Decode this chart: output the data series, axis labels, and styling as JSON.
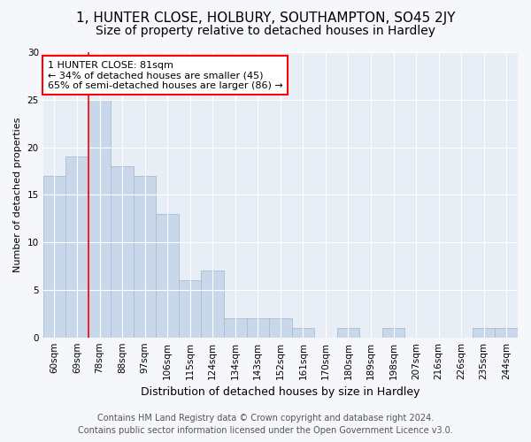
{
  "title1": "1, HUNTER CLOSE, HOLBURY, SOUTHAMPTON, SO45 2JY",
  "title2": "Size of property relative to detached houses in Hardley",
  "xlabel": "Distribution of detached houses by size in Hardley",
  "ylabel": "Number of detached properties",
  "categories": [
    "60sqm",
    "69sqm",
    "78sqm",
    "88sqm",
    "97sqm",
    "106sqm",
    "115sqm",
    "124sqm",
    "134sqm",
    "143sqm",
    "152sqm",
    "161sqm",
    "170sqm",
    "180sqm",
    "189sqm",
    "198sqm",
    "207sqm",
    "216sqm",
    "226sqm",
    "235sqm",
    "244sqm"
  ],
  "values": [
    17,
    19,
    25,
    18,
    17,
    13,
    6,
    7,
    2,
    2,
    2,
    1,
    0,
    1,
    0,
    1,
    0,
    0,
    0,
    1,
    1
  ],
  "bar_color": "#c8d8ea",
  "bar_edge_color": "#a8bdd0",
  "annotation_label": "1 HUNTER CLOSE: 81sqm",
  "annotation_line1": "← 34% of detached houses are smaller (45)",
  "annotation_line2": "65% of semi-detached houses are larger (86) →",
  "red_line_bin_index": 2,
  "ylim": [
    0,
    30
  ],
  "yticks": [
    0,
    5,
    10,
    15,
    20,
    25,
    30
  ],
  "background_color": "#f5f7fa",
  "plot_bg_color": "#e8eef5",
  "grid_color": "#ffffff",
  "footer1": "Contains HM Land Registry data © Crown copyright and database right 2024.",
  "footer2": "Contains public sector information licensed under the Open Government Licence v3.0.",
  "title1_fontsize": 11,
  "title2_fontsize": 10,
  "xlabel_fontsize": 9,
  "ylabel_fontsize": 8,
  "tick_fontsize": 7.5,
  "footer_fontsize": 7,
  "annot_fontsize": 8
}
